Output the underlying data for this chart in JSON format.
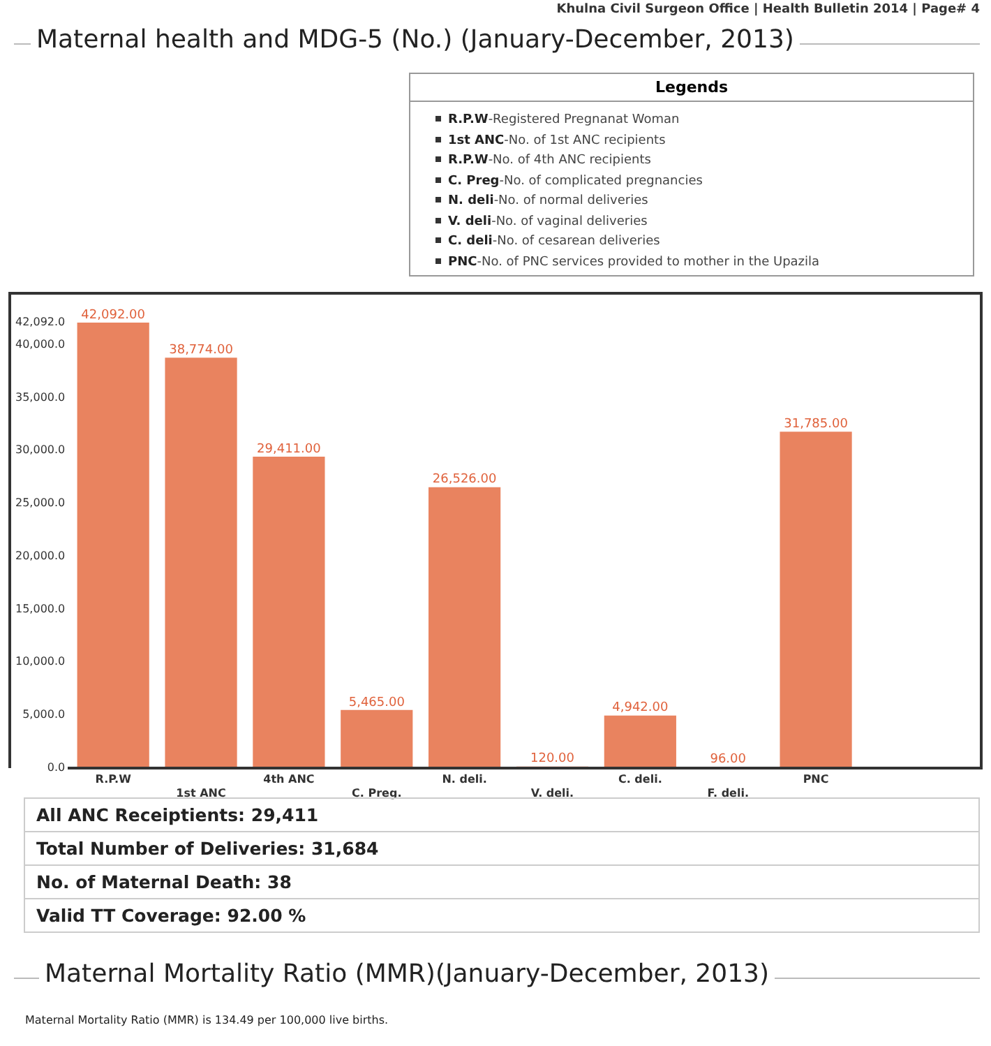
{
  "chart_data": {
    "type": "bar",
    "title": "Maternal health and MDG-5 (No.) (January-December, 2013)",
    "categories": [
      "R.P.W",
      "1st ANC",
      "4th ANC",
      "C. Preg.",
      "N. deli.",
      "V. deli.",
      "C. deli.",
      "F. deli.",
      "PNC"
    ],
    "values": [
      42092,
      38774,
      29411,
      5465,
      26526,
      120,
      4942,
      96,
      31785
    ],
    "value_labels": [
      "42,092.00",
      "38,774.00",
      "29,411.00",
      "5,465.00",
      "26,526.00",
      "120.00",
      "4,942.00",
      "96.00",
      "31,785.00"
    ],
    "color": "#e9835f",
    "ylim": [
      0,
      42092
    ],
    "yticks": [
      {
        "value": 0,
        "label": "0.0"
      },
      {
        "value": 5000,
        "label": "5,000.0"
      },
      {
        "value": 10000,
        "label": "10,000.0"
      },
      {
        "value": 15000,
        "label": "15,000.0"
      },
      {
        "value": 20000,
        "label": "20,000.0"
      },
      {
        "value": 25000,
        "label": "25,000.0"
      },
      {
        "value": 30000,
        "label": "30,000.0"
      },
      {
        "value": 35000,
        "label": "35,000.0"
      },
      {
        "value": 40000,
        "label": "40,000.0"
      },
      {
        "value": 42092,
        "label": "42,092.0"
      }
    ],
    "grid": false,
    "legend_title": "Legends",
    "annotations": [
      "Khulna Civil Surgeon Office | Health Bulletin 2014 | Page# 4",
      "R.P.W-Registered Pregnanat Woman",
      "1st ANC-No. of 1st ANC recipients",
      "R.P.W-No. of 4th ANC recipients",
      "C. Preg-No. of complicated pregnancies",
      "N. deli-No. of normal deliveries",
      "V. deli-No. of vaginal deliveries",
      "C. deli-No. of cesarean deliveries",
      "PNC-No. of PNC services provided to mother in the Upazila",
      "All ANC Receiptients: 29,411",
      "Total Number of Deliveries: 31,684",
      "No. of Maternal Death: 38",
      "Valid TT Coverage: 92.00 %",
      "Maternal Mortality Ratio (MMR)(January-December, 2013)",
      "Maternal Mortality Ratio (MMR) is 134.49 per 100,000 live births."
    ]
  }
}
